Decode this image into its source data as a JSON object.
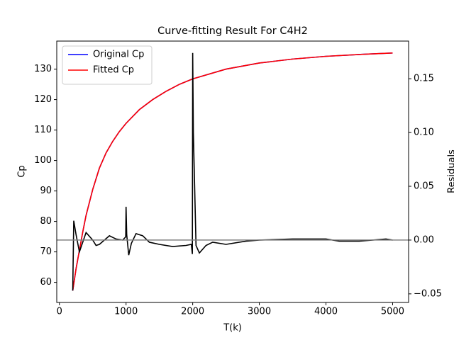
{
  "chart_data": {
    "type": "line",
    "title": "Curve-fitting Result For C4H2",
    "xlabel": "T(k)",
    "ylabel": "Cp",
    "ylabel_color": "#ff0000",
    "y2label": "Residuals",
    "xlim": [
      -40,
      5240
    ],
    "xticks": [
      0,
      1000,
      2000,
      3000,
      4000,
      5000
    ],
    "ylim": [
      53.4,
      139.2
    ],
    "yticks": [
      60,
      70,
      80,
      90,
      100,
      110,
      120,
      130
    ],
    "y2lim": [
      -0.058,
      0.185
    ],
    "y2ticks": [
      {
        "value": -0.05,
        "label": "−0.05"
      },
      {
        "value": 0,
        "label": "0.00"
      },
      {
        "value": 0.05,
        "label": "0.05"
      },
      {
        "value": 0.1,
        "label": "0.10"
      },
      {
        "value": 0.15,
        "label": "0.15"
      }
    ],
    "legend": "upper left",
    "x": [
      200,
      250,
      300,
      350,
      400,
      500,
      600,
      700,
      800,
      900,
      1000,
      1200,
      1400,
      1600,
      1800,
      2000,
      2500,
      3000,
      3500,
      4000,
      4500,
      5000
    ],
    "series": [
      {
        "name": "Original Cp",
        "color": "#0000ff",
        "values": [
          57.3,
          64.5,
          70.5,
          76.5,
          82,
          90.5,
          97.5,
          102.5,
          106.3,
          109.5,
          112.2,
          116.7,
          120,
          122.7,
          125,
          126.8,
          130,
          132,
          133.3,
          134.2,
          134.8,
          135.3
        ]
      },
      {
        "name": "Fitted Cp",
        "color": "#ff0000",
        "values": [
          57.3,
          64.5,
          70.5,
          76.5,
          82,
          90.5,
          97.5,
          102.5,
          106.3,
          109.5,
          112.2,
          116.7,
          120,
          122.7,
          125,
          126.8,
          130,
          132,
          133.3,
          134.2,
          134.8,
          135.3
        ]
      }
    ],
    "residuals": {
      "axis": "y2",
      "color": "#000000",
      "x": [
        200,
        215,
        250,
        300,
        400,
        500,
        550,
        600,
        750,
        850,
        950,
        995,
        1000,
        1010,
        1040,
        1080,
        1150,
        1250,
        1350,
        1500,
        1700,
        1900,
        1980,
        1995,
        2000,
        2010,
        2050,
        2100,
        2200,
        2300,
        2500,
        2800,
        3000,
        3500,
        4000,
        4200,
        4500,
        4700,
        4900,
        5000
      ],
      "values": [
        -0.047,
        0.018,
        0.005,
        -0.011,
        0.007,
        0.0,
        -0.005,
        -0.004,
        0.004,
        0.001,
        0.0,
        0.003,
        0.031,
        0.005,
        -0.014,
        -0.003,
        0.006,
        0.004,
        -0.002,
        -0.004,
        -0.006,
        -0.005,
        -0.004,
        -0.013,
        0.174,
        0.1,
        -0.005,
        -0.012,
        -0.005,
        -0.002,
        -0.004,
        -0.001,
        0.0,
        0.001,
        0.001,
        -0.001,
        -0.001,
        0.0,
        0.001,
        0.0
      ]
    },
    "hline": {
      "axis": "y2",
      "value": 0,
      "color": "#808080"
    }
  }
}
